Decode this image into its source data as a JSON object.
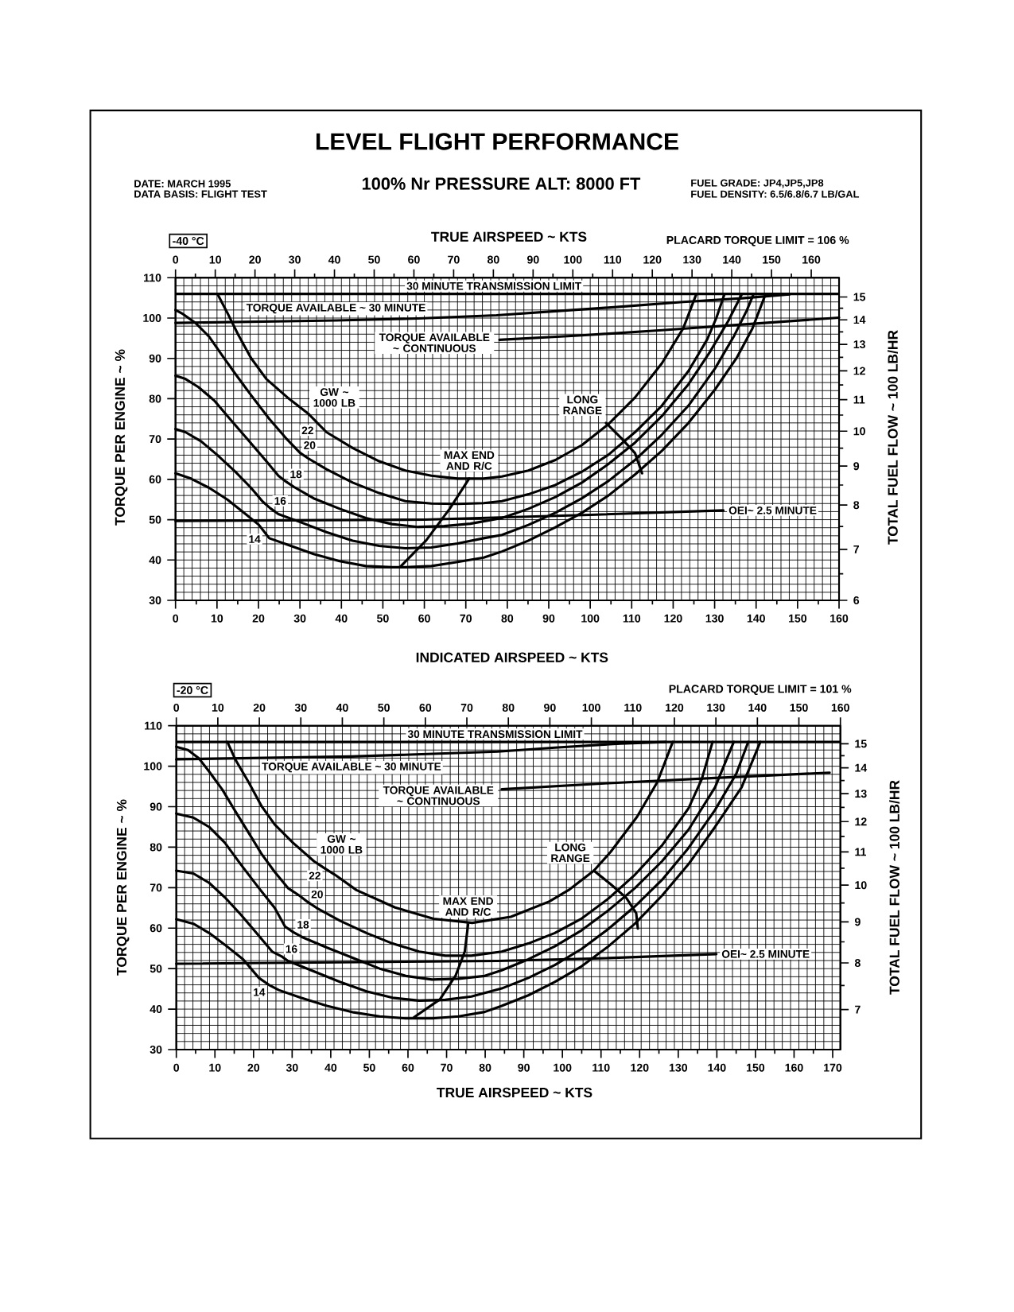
{
  "chart_data": [
    {
      "type": "line",
      "title": "LEVEL FLIGHT PERFORMANCE",
      "subtitle": "100% Nr PRESSURE ALT: 8000 FT",
      "annotations": [
        "DATE: MARCH 1995",
        "DATA BASIS: FLIGHT TEST",
        "FUEL GRADE: JP4,JP5,JP8",
        "FUEL DENSITY: 6.5/6.8/6.7 LB/GAL",
        "-40 °C",
        "PLACARD TORQUE LIMIT = 106 %",
        "GW ~ 1000 LB"
      ],
      "xlabel": "INDICATED AIRSPEED ~ KTS",
      "x2label": "TRUE AIRSPEED ~ KTS",
      "ylabel": "TORQUE PER ENGINE ~ %",
      "y2label": "TOTAL FUEL FLOW ~ 100 LB/HR",
      "xlim": [
        0,
        160
      ],
      "xticks": [
        0,
        10,
        20,
        30,
        40,
        50,
        60,
        70,
        80,
        90,
        100,
        110,
        120,
        130,
        140,
        150,
        160,
        {
          "value": 5,
          "label": null
        },
        {
          "value": 15,
          "label": null
        },
        {
          "value": 25,
          "label": null
        },
        {
          "value": 35,
          "label": null
        },
        {
          "value": 45,
          "label": null
        },
        {
          "value": 55,
          "label": null
        },
        {
          "value": 65,
          "label": null
        },
        {
          "value": 75,
          "label": null
        },
        {
          "value": 85,
          "label": null
        },
        {
          "value": 95,
          "label": null
        },
        {
          "value": 105,
          "label": null
        },
        {
          "value": 115,
          "label": null
        },
        {
          "value": 125,
          "label": null
        },
        {
          "value": 135,
          "label": null
        },
        {
          "value": 145,
          "label": null
        },
        {
          "value": 155,
          "label": null
        }
      ],
      "x2lim": [
        0,
        167
      ],
      "x2ticks": [
        0,
        10,
        20,
        30,
        40,
        50,
        60,
        70,
        80,
        90,
        100,
        110,
        120,
        130,
        140,
        150,
        160,
        {
          "value": 5,
          "label": null
        },
        {
          "value": 15,
          "label": null
        },
        {
          "value": 25,
          "label": null
        },
        {
          "value": 35,
          "label": null
        },
        {
          "value": 45,
          "label": null
        },
        {
          "value": 55,
          "label": null
        },
        {
          "value": 65,
          "label": null
        },
        {
          "value": 75,
          "label": null
        },
        {
          "value": 85,
          "label": null
        },
        {
          "value": 95,
          "label": null
        },
        {
          "value": 105,
          "label": null
        },
        {
          "value": 115,
          "label": null
        },
        {
          "value": 125,
          "label": null
        },
        {
          "value": 135,
          "label": null
        },
        {
          "value": 145,
          "label": null
        },
        {
          "value": 155,
          "label": null
        }
      ],
      "ylim": [
        30,
        110
      ],
      "yticks": [
        30,
        40,
        50,
        60,
        70,
        80,
        90,
        100,
        110
      ],
      "y2lim": [
        6.0,
        15.9
      ],
      "y2ticks": [
        6,
        7,
        8,
        9,
        10,
        11,
        12,
        13,
        14,
        15,
        {
          "value": 6.5,
          "label": null
        },
        {
          "value": 7.5,
          "label": null
        },
        {
          "value": 8.5,
          "label": null
        },
        {
          "value": 9.5,
          "label": null
        },
        {
          "value": 10.5,
          "label": null
        },
        {
          "value": 11.5,
          "label": null
        },
        {
          "value": 12.5,
          "label": null
        },
        {
          "value": 13.5,
          "label": null
        },
        {
          "value": 14.5,
          "label": null
        }
      ],
      "log": "y2",
      "grid": true,
      "ref_lines": [
        {
          "axis": "y",
          "value": 106,
          "label": "30 MINUTE TRANSMISSION LIMIT"
        }
      ],
      "series": [
        {
          "name": "14",
          "color": "#000000",
          "x": [
            0,
            3.7,
            8.1,
            12.5,
            16.9,
            20.1,
            21.4,
            22.6,
            27.0,
            33.3,
            39.6,
            45.9,
            52.2,
            55.4,
            61.7,
            68.0,
            74.3,
            78.7,
            85.1,
            91.6,
            98.0,
            104.4,
            110.8,
            117.3,
            123.7,
            130.1,
            135.3,
            139.1,
            142.3
          ],
          "values": [
            61.5,
            60.2,
            57.9,
            55.0,
            51.4,
            48.7,
            47.0,
            45.4,
            43.8,
            41.5,
            39.7,
            38.5,
            38.2,
            38.2,
            38.5,
            39.5,
            40.6,
            42.1,
            44.8,
            48.1,
            51.7,
            56.0,
            61.2,
            67.1,
            74.0,
            82.3,
            90.1,
            97.4,
            106.0
          ]
        },
        {
          "name": "16",
          "color": "#000000",
          "x": [
            0,
            2.4,
            6.2,
            10.0,
            14.4,
            18.2,
            21.0,
            22.9,
            24.8,
            30.1,
            36.4,
            42.7,
            49.1,
            55.4,
            61.7,
            68.0,
            74.3,
            78.7,
            85.1,
            91.6,
            98.0,
            104.4,
            110.8,
            117.3,
            123.7,
            130.1,
            134.6,
            137.8,
            139.4
          ],
          "values": [
            72.5,
            71.7,
            69.4,
            66.1,
            61.9,
            57.9,
            54.5,
            52.8,
            51.4,
            49.4,
            46.9,
            44.8,
            43.5,
            42.9,
            43.1,
            44.1,
            45.4,
            46.2,
            48.7,
            51.7,
            55.3,
            59.6,
            64.8,
            71.1,
            78.3,
            87.5,
            95.4,
            102.0,
            106.0
          ]
        },
        {
          "name": "18",
          "color": "#000000",
          "x": [
            0,
            2.4,
            5.5,
            9.3,
            13.1,
            17.5,
            21.9,
            24.8,
            26.7,
            28.6,
            33.3,
            39.6,
            45.9,
            52.2,
            58.5,
            64.8,
            71.1,
            78.7,
            85.1,
            91.6,
            98.0,
            104.4,
            110.8,
            117.3,
            123.7,
            128.8,
            133.3,
            136.6
          ],
          "values": [
            85.7,
            84.9,
            82.9,
            79.6,
            75.0,
            69.8,
            64.5,
            60.9,
            59.4,
            58.1,
            55.3,
            52.7,
            50.4,
            48.9,
            48.2,
            48.4,
            49.0,
            50.4,
            52.7,
            55.6,
            59.2,
            63.8,
            69.1,
            75.7,
            83.6,
            91.5,
            99.3,
            106.0
          ]
        },
        {
          "name": "20",
          "color": "#000000",
          "x": [
            0,
            1.8,
            4.9,
            8.1,
            11.2,
            14.4,
            18.2,
            22.6,
            27.0,
            30.0,
            32.0,
            36.4,
            42.7,
            49.1,
            55.4,
            61.7,
            68.0,
            74.3,
            78.7,
            85.1,
            91.6,
            98.0,
            104.4,
            110.8,
            117.3,
            123.7,
            128.2,
            130.4,
            132.4
          ],
          "values": [
            102.0,
            101.0,
            98.7,
            95.4,
            90.8,
            86.2,
            80.9,
            75.0,
            69.8,
            66.6,
            65.2,
            62.5,
            59.2,
            56.6,
            54.6,
            54.0,
            53.9,
            54.1,
            54.6,
            56.3,
            58.6,
            61.9,
            66.1,
            71.7,
            78.3,
            86.9,
            94.7,
            100.0,
            106.0
          ]
        },
        {
          "name": "22",
          "color": "#000000",
          "x": [
            10.1,
            12.5,
            15.0,
            18.2,
            21.9,
            27.0,
            32.0,
            34.2,
            36.4,
            42.7,
            49.1,
            55.4,
            61.7,
            68.0,
            74.3,
            78.7,
            85.1,
            91.6,
            98.0,
            104.4,
            110.8,
            117.3,
            122.4,
            125.6
          ],
          "values": [
            106.0,
            101.3,
            96.1,
            90.1,
            84.9,
            80.3,
            76.3,
            74.0,
            71.7,
            67.8,
            64.5,
            62.2,
            60.9,
            60.2,
            60.2,
            60.7,
            62.2,
            64.8,
            68.5,
            73.7,
            80.3,
            88.8,
            97.4,
            106.0
          ]
        },
        {
          "name": "TORQUE AVAILABLE ~ 30 MINUTE",
          "color": "#000000",
          "x": [
            0,
            38.7,
            58.5,
            77.4,
            91.6,
            104.4,
            122.4,
            136.6,
            148.1
          ],
          "values": [
            98.8,
            99.4,
            99.9,
            100.7,
            101.7,
            102.6,
            104.0,
            104.9,
            105.9
          ]
        },
        {
          "name": "TORQUE AVAILABLE ~ CONTINUOUS",
          "color": "#000000",
          "x": [
            78.1,
            98.0,
            117.3,
            136.6,
            160
          ],
          "values": [
            94.6,
            95.7,
            97.0,
            98.4,
            100.1
          ]
        },
        {
          "name": "OEI~ 2.5 MINUTE",
          "color": "#000000",
          "x": [
            0,
            60,
            100,
            132.1
          ],
          "values": [
            49.7,
            50.0,
            51.2,
            52.3
          ]
        },
        {
          "name": "MAX END AND R/C",
          "color": "#000000",
          "x": [
            54.1,
            60.4,
            66.1,
            70.8
          ],
          "values": [
            38.2,
            44.8,
            52.7,
            60.2
          ]
        },
        {
          "name": "LONG RANGE",
          "color": "#000000",
          "x": [
            103.8,
            107.6,
            110.8,
            112.5
          ],
          "values": [
            74.0,
            70.1,
            66.5,
            61.5
          ]
        }
      ]
    },
    {
      "type": "line",
      "annotations": [
        "-20 °C",
        "PLACARD TORQUE LIMIT = 101 %",
        "GW ~ 1000 LB"
      ],
      "xlabel": "TRUE AIRSPEED ~ KTS",
      "ylabel": "TORQUE PER ENGINE ~ %",
      "y2label": "TOTAL FUEL FLOW ~ 100 LB/HR",
      "xlim": [
        0,
        172
      ],
      "xticks": [
        0,
        10,
        20,
        30,
        40,
        50,
        60,
        70,
        80,
        90,
        100,
        110,
        120,
        130,
        140,
        150,
        160,
        170,
        {
          "value": 5,
          "label": null
        },
        {
          "value": 15,
          "label": null
        },
        {
          "value": 25,
          "label": null
        },
        {
          "value": 35,
          "label": null
        },
        {
          "value": 45,
          "label": null
        },
        {
          "value": 55,
          "label": null
        },
        {
          "value": 65,
          "label": null
        },
        {
          "value": 75,
          "label": null
        },
        {
          "value": 85,
          "label": null
        },
        {
          "value": 95,
          "label": null
        },
        {
          "value": 105,
          "label": null
        },
        {
          "value": 115,
          "label": null
        },
        {
          "value": 125,
          "label": null
        },
        {
          "value": 135,
          "label": null
        },
        {
          "value": 145,
          "label": null
        },
        {
          "value": 155,
          "label": null
        },
        {
          "value": 165,
          "label": null
        }
      ],
      "x2lim": [
        0,
        160
      ],
      "x2ticks": [
        0,
        10,
        20,
        30,
        40,
        50,
        60,
        70,
        80,
        90,
        100,
        110,
        120,
        130,
        140,
        150,
        160
      ],
      "ylim": [
        30,
        110
      ],
      "yticks": [
        30,
        40,
        50,
        60,
        70,
        80,
        90,
        100,
        110
      ],
      "y2lim": [
        6.24,
        15.8
      ],
      "y2ticks": [
        7,
        8,
        9,
        10,
        11,
        12,
        13,
        14,
        15,
        {
          "value": 7.5,
          "label": null
        },
        {
          "value": 8.5,
          "label": null
        },
        {
          "value": 9.5,
          "label": null
        },
        {
          "value": 10.5,
          "label": null
        },
        {
          "value": 11.5,
          "label": null
        },
        {
          "value": 12.5,
          "label": null
        },
        {
          "value": 13.5,
          "label": null
        },
        {
          "value": 14.5,
          "label": null
        }
      ],
      "log": "y2",
      "grid": true,
      "ref_lines": [
        {
          "axis": "y",
          "value": 106,
          "label": "30 MINUTE TRANSMISSION LIMIT"
        }
      ],
      "series": [
        {
          "name": "14",
          "color": "#000000",
          "axis": "x2",
          "x": [
            0,
            4.1,
            7.9,
            11.7,
            16.1,
            19.9,
            22.3,
            24.7,
            30.0,
            36.3,
            42.7,
            49.0,
            55.3,
            61.6,
            68.0,
            74.3,
            78.4,
            84.8,
            91.2,
            97.7,
            104.1,
            110.5,
            117.0,
            123.4,
            129.8,
            136.2,
            140.7
          ],
          "values": [
            62.2,
            61.1,
            58.8,
            55.9,
            52.3,
            47.7,
            46.0,
            44.7,
            42.8,
            40.8,
            39.2,
            38.2,
            37.7,
            37.7,
            38.2,
            39.3,
            40.8,
            43.4,
            46.7,
            50.6,
            55.5,
            61.1,
            68.0,
            75.8,
            85.0,
            94.8,
            106.0
          ]
        },
        {
          "name": "16",
          "color": "#000000",
          "axis": "x2",
          "x": [
            0,
            4.1,
            7.9,
            11.7,
            15.5,
            19.3,
            23.1,
            25.4,
            26.9,
            33.2,
            39.5,
            45.8,
            52.1,
            58.5,
            64.8,
            71.1,
            78.4,
            84.8,
            91.2,
            97.7,
            104.1,
            110.5,
            117.0,
            123.4,
            129.8,
            134.9,
            137.8
          ],
          "values": [
            74.2,
            73.5,
            71.2,
            67.6,
            63.4,
            58.8,
            54.2,
            53.0,
            51.9,
            49.3,
            46.7,
            44.4,
            42.8,
            42.1,
            42.3,
            43.1,
            45.1,
            47.7,
            50.9,
            54.9,
            59.8,
            65.4,
            71.9,
            79.8,
            89.2,
            98.1,
            106.0
          ]
        },
        {
          "name": "18",
          "color": "#000000",
          "axis": "x2",
          "x": [
            0,
            4.1,
            7.9,
            11.7,
            15.5,
            19.9,
            23.7,
            26.2,
            28.2,
            30.3,
            36.3,
            42.7,
            49.0,
            55.3,
            61.6,
            68.0,
            74.3,
            78.4,
            84.8,
            91.2,
            97.7,
            104.1,
            110.5,
            117.0,
            123.4,
            129.8,
            134.3
          ],
          "values": [
            88.3,
            87.3,
            85.0,
            81.1,
            75.8,
            69.9,
            65.0,
            60.4,
            59.0,
            57.8,
            55.2,
            52.6,
            50.0,
            48.2,
            47.3,
            47.5,
            48.2,
            49.6,
            52.3,
            55.5,
            59.5,
            64.4,
            69.9,
            76.5,
            84.3,
            94.8,
            106.0
          ]
        },
        {
          "name": "20",
          "color": "#000000",
          "axis": "x2",
          "x": [
            0,
            2.8,
            5.4,
            7.9,
            11.1,
            14.2,
            17.4,
            20.5,
            23.7,
            26.9,
            29.7,
            31.6,
            33.8,
            39.5,
            45.8,
            52.1,
            58.5,
            64.8,
            71.1,
            78.4,
            84.8,
            91.2,
            97.7,
            104.1,
            110.5,
            117.0,
            123.4,
            126.6,
            129.2
          ],
          "values": [
            104.8,
            104.0,
            102.0,
            98.7,
            94.2,
            88.9,
            83.6,
            78.4,
            73.9,
            69.9,
            68.0,
            66.5,
            65.0,
            61.8,
            58.8,
            56.2,
            54.2,
            53.2,
            53.2,
            54.2,
            56.2,
            58.8,
            62.4,
            67.3,
            73.2,
            80.4,
            89.6,
            96.8,
            106.0
          ]
        },
        {
          "name": "22",
          "color": "#000000",
          "axis": "x2",
          "x": [
            12.3,
            14.2,
            17.4,
            20.5,
            23.7,
            28.1,
            33.2,
            35.7,
            38.2,
            43.4,
            52.7,
            62.0,
            71.3,
            80.6,
            89.9,
            94.5,
            100.6,
            104.7,
            111.0,
            115.9,
            119.6
          ],
          "values": [
            106.0,
            101.7,
            96.1,
            90.2,
            85.6,
            81.1,
            76.5,
            74.8,
            73.2,
            69.4,
            65.1,
            62.3,
            61.3,
            62.8,
            66.6,
            69.4,
            74.2,
            78.9,
            87.5,
            96.1,
            106.0
          ]
        },
        {
          "name": "TORQUE AVAILABLE ~ 30 MINUTE",
          "color": "#000000",
          "axis": "x2",
          "x": [
            0,
            42.2,
            77.4,
            91.2,
            107.0,
            118.0
          ],
          "values": [
            101.7,
            102.4,
            103.6,
            104.6,
            105.6,
            106.0
          ]
        },
        {
          "name": "TORQUE AVAILABLE ~ CONTINUOUS",
          "color": "#000000",
          "axis": "x2",
          "x": [
            78.4,
            104.1,
            129.8,
            157.4
          ],
          "values": [
            94.3,
            95.8,
            97.1,
            98.4
          ]
        },
        {
          "name": "OEI~ 2.5 MINUTE",
          "color": "#000000",
          "axis": "x2",
          "x": [
            0,
            77.4,
            104.1,
            130.1
          ],
          "values": [
            51.2,
            51.9,
            52.6,
            53.6
          ]
        },
        {
          "name": "MAX END AND R/C",
          "color": "#000000",
          "axis": "x2",
          "x": [
            57.3,
            63.5,
            67.3,
            69.5,
            70.3
          ],
          "values": [
            38.0,
            42.4,
            48.3,
            54.2,
            60.9
          ]
        },
        {
          "name": "LONG RANGE",
          "color": "#000000",
          "axis": "x2",
          "x": [
            100.6,
            104.6,
            108.4,
            110.8,
            111.2
          ],
          "values": [
            74.2,
            70.9,
            67.5,
            63.7,
            59.9
          ]
        }
      ]
    }
  ]
}
